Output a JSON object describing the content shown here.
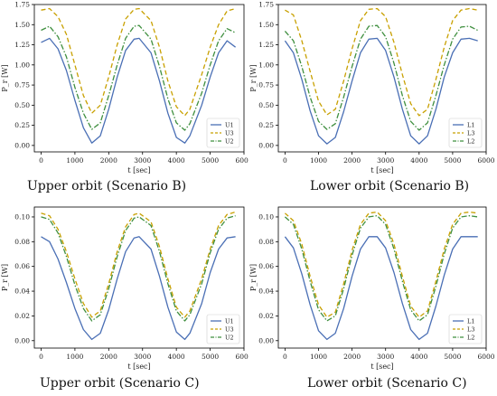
{
  "charts": [
    {
      "caption": "Upper orbit (Scenario B)",
      "chart_data": {
        "type": "line",
        "xlabel": "t [sec]",
        "ylabel": "P_r [W]",
        "xlim": [
          -200,
          6000
        ],
        "ylim": [
          -0.08,
          1.75
        ],
        "xticks": [
          "0",
          "1000",
          "2000",
          "3000",
          "4000",
          "5000",
          "6000"
        ],
        "yticks": [
          "0.00",
          "0.25",
          "0.50",
          "0.75",
          "1.00",
          "1.25",
          "1.50",
          "1.75"
        ],
        "legend": "lower-right",
        "series": [
          {
            "name": "U1",
            "color": "#4a6fb5",
            "dash": "solid",
            "x": [
              0,
              250,
              500,
              750,
              1000,
              1250,
              1500,
              1750,
              2000,
              2250,
              2500,
              2750,
              2900,
              3250,
              3500,
              3750,
              4000,
              4250,
              4400,
              4750,
              5000,
              5250,
              5500,
              5750
            ],
            "y": [
              1.28,
              1.33,
              1.2,
              0.93,
              0.56,
              0.22,
              0.03,
              0.12,
              0.45,
              0.85,
              1.18,
              1.32,
              1.33,
              1.15,
              0.8,
              0.4,
              0.1,
              0.03,
              0.12,
              0.5,
              0.85,
              1.15,
              1.3,
              1.22
            ]
          },
          {
            "name": "U3",
            "color": "#c8a000",
            "dash": "dashed",
            "x": [
              0,
              250,
              500,
              750,
              1000,
              1250,
              1500,
              1750,
              2000,
              2250,
              2500,
              2750,
              2900,
              3250,
              3500,
              3750,
              4000,
              4250,
              4400,
              4750,
              5000,
              5250,
              5500,
              5750
            ],
            "y": [
              1.68,
              1.7,
              1.6,
              1.38,
              1.0,
              0.62,
              0.4,
              0.5,
              0.85,
              1.25,
              1.57,
              1.69,
              1.7,
              1.55,
              1.22,
              0.8,
              0.48,
              0.37,
              0.45,
              0.88,
              1.22,
              1.5,
              1.67,
              1.7
            ]
          },
          {
            "name": "U2",
            "color": "#3f8f3f",
            "dash": "dashdot",
            "x": [
              0,
              250,
              500,
              750,
              1000,
              1250,
              1500,
              1750,
              2000,
              2250,
              2500,
              2750,
              2900,
              3250,
              3500,
              3750,
              4000,
              4250,
              4400,
              4750,
              5000,
              5250,
              5500,
              5750
            ],
            "y": [
              1.43,
              1.48,
              1.35,
              1.1,
              0.72,
              0.4,
              0.2,
              0.28,
              0.62,
              1.0,
              1.33,
              1.48,
              1.49,
              1.32,
              0.98,
              0.58,
              0.28,
              0.19,
              0.27,
              0.65,
              1.0,
              1.3,
              1.45,
              1.4
            ]
          }
        ]
      }
    },
    {
      "caption": "Lower orbit (Scenario B)",
      "chart_data": {
        "type": "line",
        "xlabel": "t [sec]",
        "ylabel": "P_r [W]",
        "xlim": [
          -200,
          6000
        ],
        "ylim": [
          -0.08,
          1.75
        ],
        "xticks": [
          "0",
          "1000",
          "2000",
          "3000",
          "4000",
          "5000",
          "6000"
        ],
        "yticks": [
          "0.00",
          "0.25",
          "0.50",
          "0.75",
          "1.00",
          "1.25",
          "1.50",
          "1.75"
        ],
        "legend": "lower-right",
        "series": [
          {
            "name": "L1",
            "color": "#4a6fb5",
            "dash": "solid",
            "x": [
              0,
              250,
              500,
              750,
              1000,
              1250,
              1500,
              1750,
              2000,
              2250,
              2500,
              2750,
              3000,
              3250,
              3500,
              3750,
              4000,
              4250,
              4500,
              4750,
              5000,
              5250,
              5500,
              5750
            ],
            "y": [
              1.3,
              1.15,
              0.82,
              0.43,
              0.12,
              0.02,
              0.1,
              0.42,
              0.8,
              1.15,
              1.32,
              1.33,
              1.18,
              0.85,
              0.45,
              0.12,
              0.02,
              0.12,
              0.45,
              0.85,
              1.15,
              1.32,
              1.33,
              1.3
            ]
          },
          {
            "name": "L3",
            "color": "#c8a000",
            "dash": "dashed",
            "x": [
              0,
              250,
              500,
              750,
              1000,
              1250,
              1500,
              1750,
              2000,
              2250,
              2500,
              2750,
              3000,
              3250,
              3500,
              3750,
              4000,
              4250,
              4500,
              4750,
              5000,
              5250,
              5500,
              5750
            ],
            "y": [
              1.68,
              1.62,
              1.3,
              0.92,
              0.55,
              0.38,
              0.45,
              0.8,
              1.2,
              1.55,
              1.69,
              1.7,
              1.6,
              1.28,
              0.88,
              0.52,
              0.37,
              0.45,
              0.82,
              1.22,
              1.55,
              1.68,
              1.7,
              1.68
            ]
          },
          {
            "name": "L2",
            "color": "#3f8f3f",
            "dash": "dashdot",
            "x": [
              0,
              250,
              500,
              750,
              1000,
              1250,
              1500,
              1750,
              2000,
              2250,
              2500,
              2750,
              3000,
              3250,
              3500,
              3750,
              4000,
              4250,
              4500,
              4750,
              5000,
              5250,
              5500,
              5750
            ],
            "y": [
              1.42,
              1.3,
              0.98,
              0.6,
              0.3,
              0.2,
              0.27,
              0.6,
              0.98,
              1.32,
              1.48,
              1.49,
              1.35,
              1.02,
              0.62,
              0.3,
              0.19,
              0.28,
              0.62,
              1.0,
              1.32,
              1.47,
              1.48,
              1.43
            ]
          }
        ]
      }
    },
    {
      "caption": "Upper orbit (Scenario C)",
      "chart_data": {
        "type": "line",
        "xlabel": "t [sec]",
        "ylabel": "P_r [W]",
        "xlim": [
          -200,
          6000
        ],
        "ylim": [
          -0.006,
          0.108
        ],
        "xticks": [
          "0",
          "1000",
          "2000",
          "3000",
          "4000",
          "5000",
          "6000"
        ],
        "yticks": [
          "0.00",
          "0.02",
          "0.04",
          "0.06",
          "0.08",
          "0.10"
        ],
        "legend": "lower-right",
        "series": [
          {
            "name": "U1",
            "color": "#4a6fb5",
            "dash": "solid",
            "x": [
              0,
              250,
              500,
              750,
              1000,
              1250,
              1500,
              1750,
              2000,
              2250,
              2500,
              2750,
              2900,
              3250,
              3500,
              3750,
              4000,
              4250,
              4400,
              4750,
              5000,
              5250,
              5500,
              5750
            ],
            "y": [
              0.084,
              0.08,
              0.066,
              0.047,
              0.026,
              0.009,
              0.001,
              0.006,
              0.025,
              0.05,
              0.072,
              0.083,
              0.084,
              0.074,
              0.052,
              0.027,
              0.007,
              0.001,
              0.006,
              0.03,
              0.055,
              0.074,
              0.083,
              0.084
            ]
          },
          {
            "name": "U3",
            "color": "#c8a000",
            "dash": "dashed",
            "x": [
              0,
              250,
              500,
              750,
              1000,
              1250,
              1500,
              1750,
              2000,
              2250,
              2500,
              2750,
              2900,
              3250,
              3500,
              3750,
              4000,
              4250,
              4400,
              4750,
              5000,
              5250,
              5500,
              5750
            ],
            "y": [
              0.103,
              0.101,
              0.09,
              0.072,
              0.05,
              0.03,
              0.019,
              0.024,
              0.046,
              0.072,
              0.092,
              0.102,
              0.103,
              0.096,
              0.076,
              0.05,
              0.027,
              0.019,
              0.024,
              0.05,
              0.074,
              0.093,
              0.102,
              0.104
            ]
          },
          {
            "name": "U2",
            "color": "#3f8f3f",
            "dash": "dashdot",
            "x": [
              0,
              250,
              500,
              750,
              1000,
              1250,
              1500,
              1750,
              2000,
              2250,
              2500,
              2750,
              2900,
              3250,
              3500,
              3750,
              4000,
              4250,
              4400,
              4750,
              5000,
              5250,
              5500,
              5750
            ],
            "y": [
              0.1,
              0.098,
              0.087,
              0.068,
              0.045,
              0.026,
              0.016,
              0.021,
              0.042,
              0.068,
              0.089,
              0.099,
              0.1,
              0.093,
              0.072,
              0.046,
              0.024,
              0.016,
              0.021,
              0.046,
              0.071,
              0.09,
              0.099,
              0.101
            ]
          }
        ]
      }
    },
    {
      "caption": "Lower orbit (Scenario C)",
      "chart_data": {
        "type": "line",
        "xlabel": "t [sec]",
        "ylabel": "P_r [W]",
        "xlim": [
          -200,
          6000
        ],
        "ylim": [
          -0.006,
          0.108
        ],
        "xticks": [
          "0",
          "1000",
          "2000",
          "3000",
          "4000",
          "5000",
          "6000"
        ],
        "yticks": [
          "0.00",
          "0.02",
          "0.04",
          "0.06",
          "0.08",
          "0.10"
        ],
        "legend": "lower-right",
        "series": [
          {
            "name": "L1",
            "color": "#4a6fb5",
            "dash": "solid",
            "x": [
              0,
              250,
              500,
              750,
              1000,
              1250,
              1500,
              1750,
              2000,
              2250,
              2500,
              2750,
              3000,
              3250,
              3500,
              3750,
              4000,
              4250,
              4500,
              4750,
              5000,
              5250,
              5500,
              5750
            ],
            "y": [
              0.084,
              0.075,
              0.054,
              0.029,
              0.008,
              0.001,
              0.006,
              0.026,
              0.052,
              0.074,
              0.084,
              0.084,
              0.075,
              0.055,
              0.03,
              0.009,
              0.001,
              0.006,
              0.028,
              0.053,
              0.074,
              0.084,
              0.084,
              0.084
            ]
          },
          {
            "name": "L3",
            "color": "#c8a000",
            "dash": "dashed",
            "x": [
              0,
              250,
              500,
              750,
              1000,
              1250,
              1500,
              1750,
              2000,
              2250,
              2500,
              2750,
              3000,
              3250,
              3500,
              3750,
              4000,
              4250,
              4500,
              4750,
              5000,
              5250,
              5500,
              5750
            ],
            "y": [
              0.103,
              0.097,
              0.078,
              0.052,
              0.029,
              0.019,
              0.023,
              0.046,
              0.073,
              0.094,
              0.103,
              0.104,
              0.097,
              0.078,
              0.052,
              0.028,
              0.019,
              0.024,
              0.048,
              0.074,
              0.094,
              0.103,
              0.104,
              0.103
            ]
          },
          {
            "name": "L2",
            "color": "#3f8f3f",
            "dash": "dashdot",
            "x": [
              0,
              250,
              500,
              750,
              1000,
              1250,
              1500,
              1750,
              2000,
              2250,
              2500,
              2750,
              3000,
              3250,
              3500,
              3750,
              4000,
              4250,
              4500,
              4750,
              5000,
              5250,
              5500,
              5750
            ],
            "y": [
              0.1,
              0.094,
              0.074,
              0.048,
              0.025,
              0.016,
              0.02,
              0.042,
              0.069,
              0.091,
              0.1,
              0.101,
              0.094,
              0.074,
              0.048,
              0.025,
              0.016,
              0.021,
              0.044,
              0.07,
              0.091,
              0.1,
              0.101,
              0.1
            ]
          }
        ]
      }
    }
  ]
}
